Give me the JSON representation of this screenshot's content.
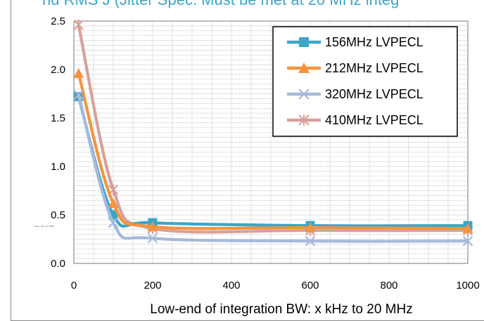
{
  "header": {
    "partial_title": "nd RMS J (Jitter Spec. Must be met at 20 MHz integ"
  },
  "colors": {
    "s156": "#3aa6c8",
    "s212": "#f39440",
    "s320": "#a6b9dc",
    "s410": "#d8a09b",
    "grid": "#9a9a9a"
  },
  "chart_data": {
    "type": "line",
    "title": "",
    "xlabel": "Low-end of integration BW: x kHz to 20 MHz",
    "ylabel": "",
    "xlim": [
      0,
      1000
    ],
    "ylim": [
      0.0,
      2.5
    ],
    "x_ticks": [
      "0",
      "200",
      "400",
      "600",
      "800",
      "1000"
    ],
    "y_ticks": [
      "0.0",
      "0.5",
      "1.0",
      "1.5",
      "2.0",
      "2.5"
    ],
    "grid": true,
    "legend_position": "top-right",
    "x": [
      12,
      100,
      200,
      600,
      1000
    ],
    "series": [
      {
        "name": "156MHz  LVPECL",
        "marker": "square",
        "color": "#3aa6c8",
        "values": [
          1.72,
          0.5,
          0.42,
          0.39,
          0.39
        ]
      },
      {
        "name": "212MHz  LVPECL",
        "marker": "triangle",
        "color": "#f39440",
        "values": [
          1.96,
          0.62,
          0.38,
          0.37,
          0.36
        ]
      },
      {
        "name": "320MHz  LVPECL",
        "marker": "x",
        "color": "#a6b9dc",
        "values": [
          1.74,
          0.42,
          0.26,
          0.23,
          0.23
        ]
      },
      {
        "name": "410MHz  LVPECL",
        "marker": "asterisk",
        "color": "#d8a09b",
        "values": [
          2.46,
          0.76,
          0.36,
          0.34,
          0.34
        ]
      }
    ],
    "annotation": "Phase Jitter (ps RMS)"
  }
}
